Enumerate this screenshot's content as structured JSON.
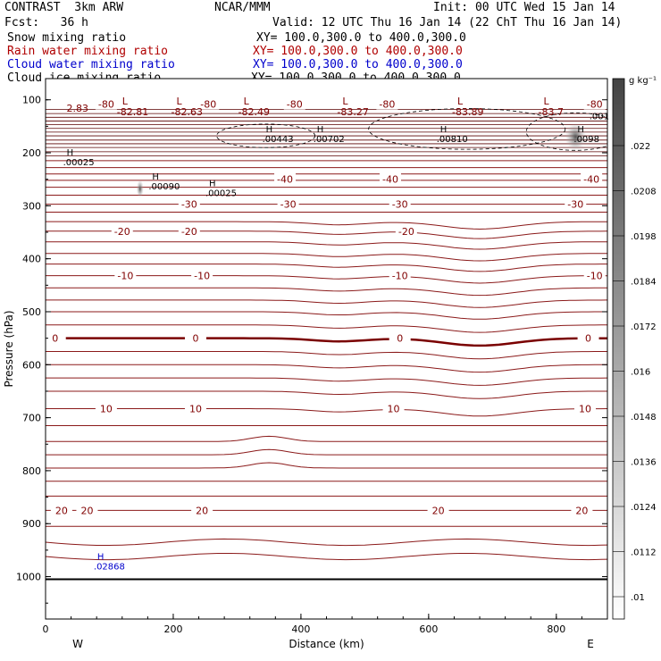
{
  "header": {
    "left1": "CONTRAST  3km ARW",
    "center1": "NCAR/MMM",
    "right1": "Init: 00 UTC Wed 15 Jan 14",
    "left2": "Fcst:   36 h",
    "right2": "Valid: 12 UTC Thu 16 Jan 14 (22 ChT Thu 16 Jan 14)",
    "fields": [
      {
        "name": "Snow mixing ratio",
        "xy": "XY= 100.0,300.0 to 400.0,300.0",
        "color": "#000000"
      },
      {
        "name": "Rain water mixing ratio",
        "xy": "XY= 100.0,300.0 to 400.0,300.0",
        "color": "#b00000"
      },
      {
        "name": "Cloud water mixing ratio",
        "xy": "XY= 100.0,300.0 to 400.0,300.0",
        "color": "#0000cc"
      },
      {
        "name": "Cloud ice mixing ratio",
        "xy": "XY= 100.0,300.0 to 400.0,300.0",
        "color": "#000000"
      }
    ]
  },
  "chart_data": {
    "type": "contour",
    "xlabel": "Distance (km)",
    "ylabel": "Pressure (hPa)",
    "xlim": [
      0,
      880
    ],
    "ylim": [
      1080,
      60
    ],
    "xticks": [
      0,
      200,
      400,
      600,
      800
    ],
    "yticks": [
      100,
      200,
      300,
      400,
      500,
      600,
      700,
      800,
      900,
      1000
    ],
    "west_label": "W",
    "east_label": "E",
    "isotherms": [
      {
        "label": "-80",
        "positions_km": [
          95,
          255,
          390,
          535,
          860
        ],
        "p": 108
      },
      {
        "label": "-40",
        "positions_km": [
          375,
          540,
          855
        ],
        "p": 250
      },
      {
        "label": "-30",
        "positions_km": [
          225,
          380,
          555,
          830
        ],
        "p": 297
      },
      {
        "label": "-20",
        "positions_km": [
          120,
          225,
          565
        ],
        "p": 348
      },
      {
        "label": "-10",
        "positions_km": [
          125,
          245,
          555,
          860
        ],
        "p": 432
      },
      {
        "label": "0",
        "positions_km": [
          15,
          235,
          555,
          850
        ],
        "p": 550
      },
      {
        "label": "10",
        "positions_km": [
          95,
          235,
          545,
          845
        ],
        "p": 683
      },
      {
        "label": "20",
        "positions_km": [
          25,
          65,
          245,
          615,
          840
        ],
        "p": 875
      }
    ],
    "lows": [
      {
        "x_km": 100,
        "p": 112,
        "value": "2.83"
      },
      {
        "x_km": 120,
        "p": 112,
        "value": "-82.81"
      },
      {
        "x_km": 205,
        "p": 112,
        "value": "-82.63"
      },
      {
        "x_km": 310,
        "p": 112,
        "value": "-82.49"
      },
      {
        "x_km": 465,
        "p": 112,
        "value": "-83.27"
      },
      {
        "x_km": 645,
        "p": 112,
        "value": "-83.89"
      },
      {
        "x_km": 780,
        "p": 112,
        "value": "-83.7"
      }
    ],
    "highs": [
      {
        "x_km": 345,
        "p": 168,
        "value": ".00443"
      },
      {
        "x_km": 425,
        "p": 168,
        "value": ".00702"
      },
      {
        "x_km": 618,
        "p": 168,
        "value": ".00810"
      },
      {
        "x_km": 833,
        "p": 168,
        "value": ".0098"
      },
      {
        "x_km": 33,
        "p": 212,
        "value": ".00025"
      },
      {
        "x_km": 167,
        "p": 257,
        "value": ".00090"
      },
      {
        "x_km": 256,
        "p": 270,
        "value": ".00025"
      },
      {
        "x_km": 81,
        "p": 975,
        "value": ".02868",
        "color": "#0000cc"
      }
    ],
    "extra_labels": [
      {
        "x_km": 860,
        "p": 130,
        "value": ".001"
      }
    ],
    "colorbar": {
      "units": "g kg⁻¹",
      "ticks": [
        ".022",
        ".0208",
        ".0198",
        ".0184",
        ".0172",
        ".016",
        ".0148",
        ".0136",
        ".0124",
        ".0112",
        ".01"
      ]
    }
  }
}
